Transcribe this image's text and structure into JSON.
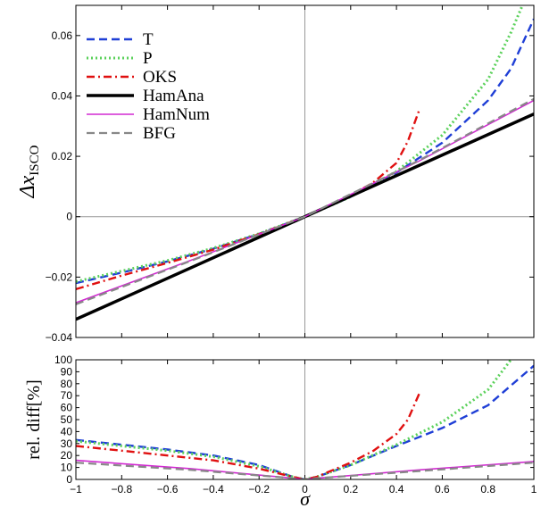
{
  "chart_data": [
    {
      "type": "line",
      "panel": "top",
      "xlabel": "",
      "ylabel_main": "Δx",
      "ylabel_sub": "ISCO",
      "xlim": [
        -1,
        1
      ],
      "ylim": [
        -0.04,
        0.07
      ],
      "yticks": [
        -0.04,
        -0.02,
        0,
        0.02,
        0.04,
        0.06
      ],
      "ytick_labels": [
        "−0.04",
        "−0.02",
        "0",
        "0.02",
        "0.04",
        "0.06"
      ],
      "zero_lines": true,
      "legend_position": "top-left",
      "series": [
        {
          "name": "T",
          "color": "#1f3fd6",
          "dash": "dashed",
          "x": [
            -1,
            -0.8,
            -0.6,
            -0.4,
            -0.2,
            0,
            0.2,
            0.4,
            0.6,
            0.8,
            0.9,
            1.0
          ],
          "y": [
            -0.022,
            -0.0185,
            -0.0148,
            -0.0106,
            -0.0057,
            0,
            0.0066,
            0.0146,
            0.0245,
            0.0385,
            0.049,
            0.0655
          ]
        },
        {
          "name": "P",
          "color": "#5bd15b",
          "dash": "dotted",
          "x": [
            -1,
            -0.8,
            -0.6,
            -0.4,
            -0.2,
            0,
            0.2,
            0.4,
            0.6,
            0.8,
            0.9,
            0.95
          ],
          "y": [
            -0.0215,
            -0.018,
            -0.0145,
            -0.0104,
            -0.0056,
            0,
            0.0066,
            0.015,
            0.027,
            0.0455,
            0.061,
            0.07
          ]
        },
        {
          "name": "OKS",
          "color": "#e01010",
          "dash": "dashdot",
          "x": [
            -1,
            -0.8,
            -0.6,
            -0.4,
            -0.2,
            0,
            0.2,
            0.3,
            0.4,
            0.45,
            0.5
          ],
          "y": [
            -0.024,
            -0.0195,
            -0.0153,
            -0.0109,
            -0.0058,
            0,
            0.007,
            0.0114,
            0.0178,
            0.025,
            0.0355
          ]
        },
        {
          "name": "HamAna",
          "color": "#000000",
          "dash": "solid",
          "x": [
            -1,
            1
          ],
          "y": [
            -0.034,
            0.034
          ]
        },
        {
          "name": "HamNum",
          "color": "#d22ad2",
          "dash": "solid",
          "x": [
            -1,
            -0.5,
            0,
            0.5,
            1
          ],
          "y": [
            -0.0285,
            -0.0145,
            0,
            0.0185,
            0.0385
          ]
        },
        {
          "name": "BFG",
          "color": "#888888",
          "dash": "dashed",
          "x": [
            -1,
            -0.5,
            0,
            0.5,
            1
          ],
          "y": [
            -0.029,
            -0.0147,
            0,
            0.0187,
            0.039
          ]
        }
      ]
    },
    {
      "type": "line",
      "panel": "bottom",
      "xlabel": "σ",
      "ylabel": "rel. diff[%]",
      "xlim": [
        -1,
        1
      ],
      "ylim": [
        0,
        100
      ],
      "xticks": [
        -1,
        -0.8,
        -0.6,
        -0.4,
        -0.2,
        0,
        0.2,
        0.4,
        0.6,
        0.8,
        1
      ],
      "xtick_labels": [
        "−1",
        "−0.8",
        "−0.6",
        "−0.4",
        "−0.2",
        "0",
        "0.2",
        "0.4",
        "0.6",
        "0.8",
        "1"
      ],
      "yticks": [
        0,
        10,
        20,
        30,
        40,
        50,
        60,
        70,
        80,
        90,
        100
      ],
      "ytick_labels": [
        "0",
        "10",
        "20",
        "30",
        "40",
        "50",
        "60",
        "70",
        "80",
        "90",
        "100"
      ],
      "series": [
        {
          "name": "T",
          "color": "#1f3fd6",
          "dash": "dashed",
          "x": [
            -1,
            -0.8,
            -0.6,
            -0.4,
            -0.2,
            -0.05,
            0,
            0.05,
            0.2,
            0.4,
            0.6,
            0.8,
            1
          ],
          "y": [
            33,
            29,
            25,
            20,
            12,
            2,
            0,
            2,
            12,
            28,
            43,
            62,
            95
          ]
        },
        {
          "name": "P",
          "color": "#5bd15b",
          "dash": "dotted",
          "x": [
            -1,
            -0.8,
            -0.6,
            -0.4,
            -0.2,
            -0.05,
            0,
            0.05,
            0.2,
            0.4,
            0.6,
            0.8,
            0.9
          ],
          "y": [
            32,
            28,
            24,
            19,
            11,
            2,
            0,
            2,
            12,
            29,
            48,
            75,
            100
          ]
        },
        {
          "name": "OKS",
          "color": "#e01010",
          "dash": "dashdot",
          "x": [
            -1,
            -0.8,
            -0.6,
            -0.4,
            -0.2,
            -0.05,
            0,
            0.05,
            0.2,
            0.3,
            0.4,
            0.45,
            0.5
          ],
          "y": [
            28,
            24,
            20,
            16,
            9,
            2,
            0,
            2,
            14,
            24,
            38,
            50,
            72
          ]
        },
        {
          "name": "HamNum",
          "color": "#d22ad2",
          "dash": "solid",
          "x": [
            -1,
            -0.5,
            -0.05,
            0,
            0.05,
            0.5,
            1
          ],
          "y": [
            16,
            9,
            1,
            0,
            1,
            8,
            15
          ]
        },
        {
          "name": "BFG",
          "color": "#888888",
          "dash": "dashed",
          "x": [
            -1,
            -0.5,
            -0.05,
            0,
            0.05,
            0.5,
            1
          ],
          "y": [
            14,
            8,
            1,
            0,
            1,
            7,
            14
          ]
        }
      ]
    }
  ]
}
